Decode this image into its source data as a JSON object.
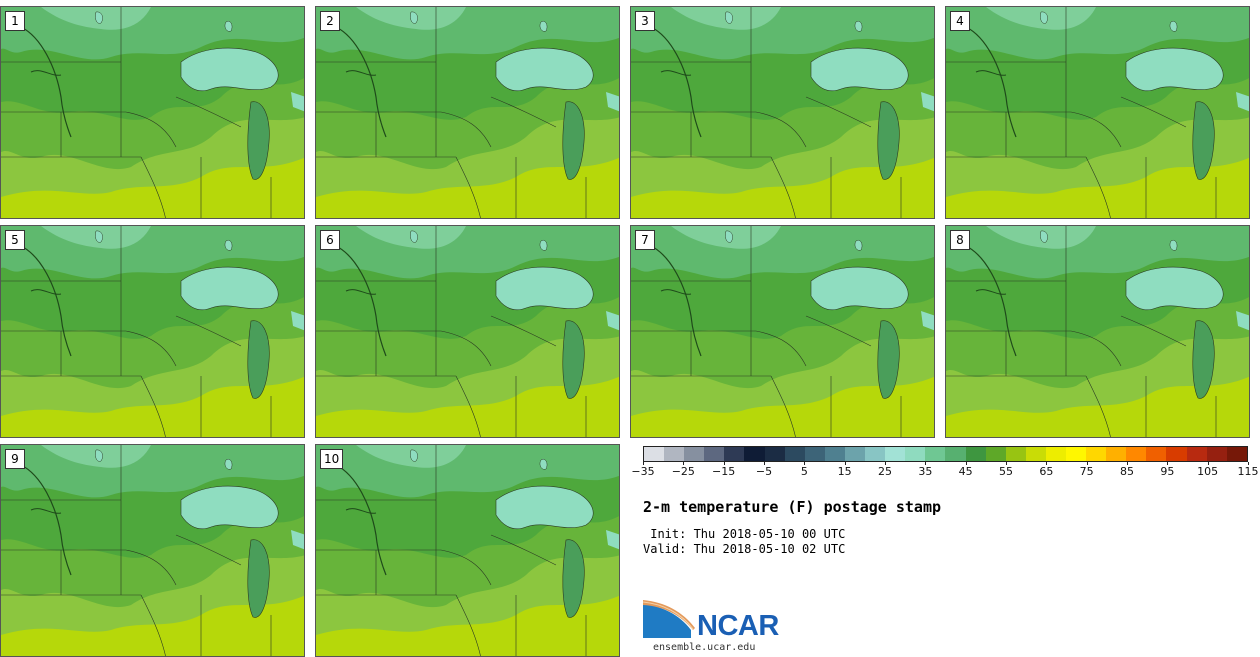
{
  "stamps": [
    {
      "label": "1"
    },
    {
      "label": "2"
    },
    {
      "label": "3"
    },
    {
      "label": "4"
    },
    {
      "label": "5"
    },
    {
      "label": "6"
    },
    {
      "label": "7"
    },
    {
      "label": "8"
    },
    {
      "label": "9"
    },
    {
      "label": "10"
    }
  ],
  "colorbar": {
    "colors": [
      "#dcdfe5",
      "#b0b6c1",
      "#8690a0",
      "#5d6880",
      "#2e3a55",
      "#0f1c36",
      "#1b2c44",
      "#2c4a60",
      "#3d6478",
      "#4f8090",
      "#6ca3ab",
      "#88c5c4",
      "#a2e2d6",
      "#8fdbbf",
      "#6fc793",
      "#57b070",
      "#3e9640",
      "#5ea828",
      "#98c412",
      "#c9dc06",
      "#eded00",
      "#fff700",
      "#ffd700",
      "#ffb000",
      "#ff8800",
      "#f06000",
      "#d83c00",
      "#b82a10",
      "#962010",
      "#761808"
    ],
    "ticks": [
      "−35",
      "−25",
      "−15",
      "−5",
      "5",
      "15",
      "25",
      "35",
      "45",
      "55",
      "65",
      "75",
      "85",
      "95",
      "105",
      "115"
    ]
  },
  "title": "2-m temperature (F) postage stamp",
  "init_line": " Init: Thu 2018-05-10 00 UTC",
  "valid_line": "Valid: Thu 2018-05-10 02 UTC",
  "logo": {
    "text": "NCAR",
    "url": "ensemble.ucar.edu"
  }
}
